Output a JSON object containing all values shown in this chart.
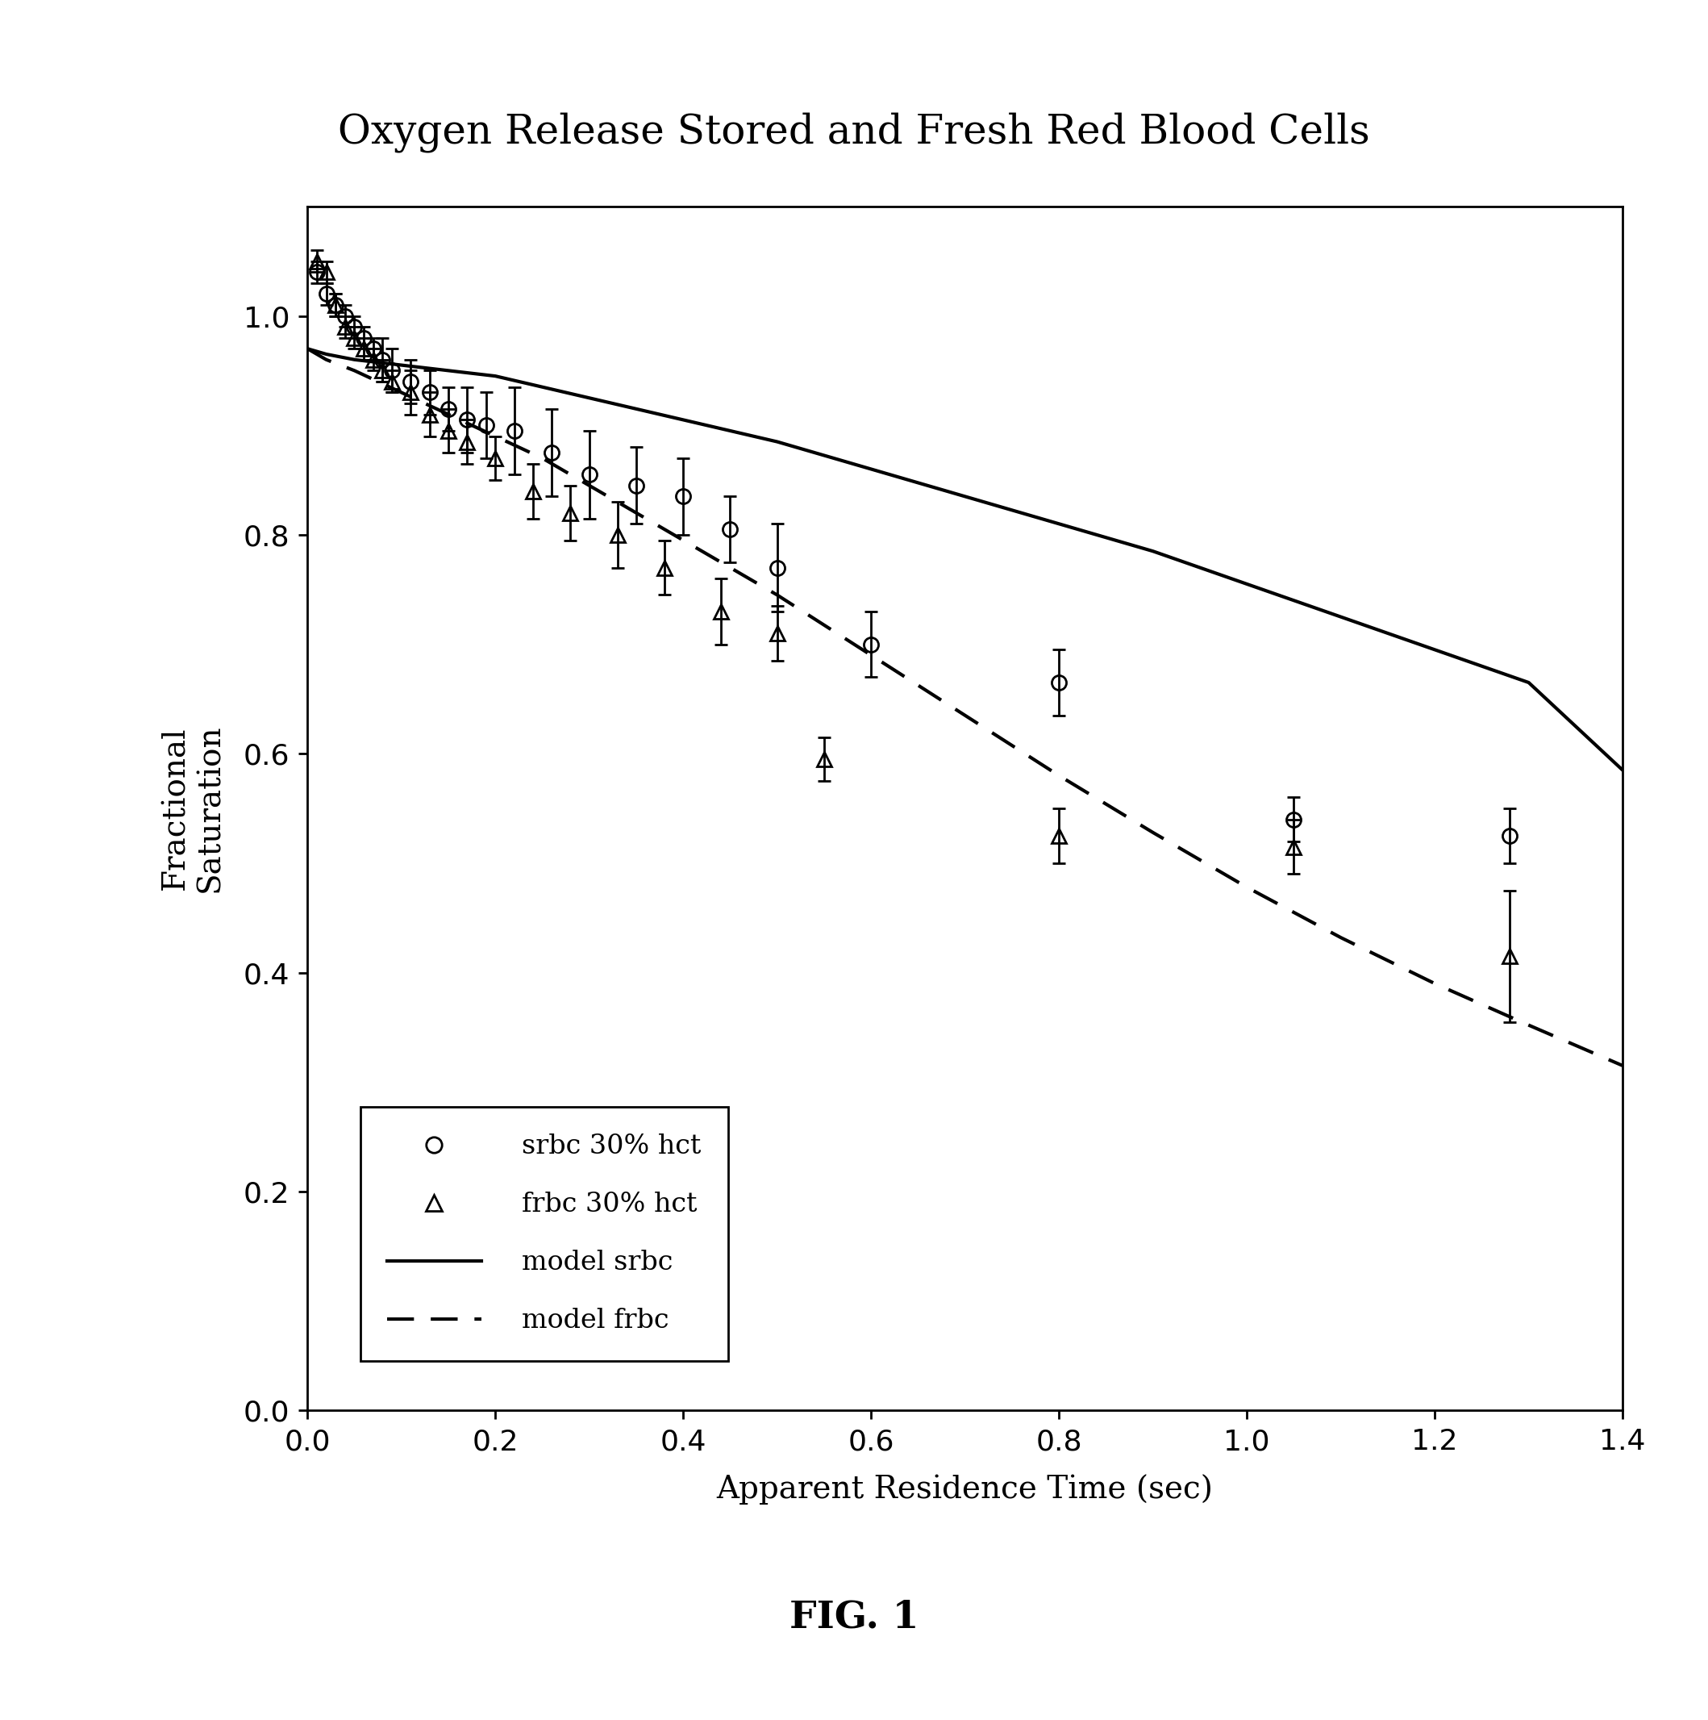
{
  "title": "Oxygen Release Stored and Fresh Red Blood Cells",
  "xlabel": "Apparent Residence Time (sec)",
  "ylabel": "Fractional\nSaturation",
  "fig_label": "FIG. 1",
  "xlim": [
    0.0,
    1.4
  ],
  "ylim": [
    0.0,
    1.1
  ],
  "xticks": [
    0.0,
    0.2,
    0.4,
    0.6,
    0.8,
    1.0,
    1.2,
    1.4
  ],
  "yticks": [
    0.0,
    0.2,
    0.4,
    0.6,
    0.8,
    1.0
  ],
  "srbc_x": [
    0.01,
    0.02,
    0.03,
    0.04,
    0.05,
    0.06,
    0.07,
    0.08,
    0.09,
    0.11,
    0.13,
    0.15,
    0.17,
    0.19,
    0.22,
    0.26,
    0.3,
    0.35,
    0.4,
    0.45,
    0.5,
    0.6,
    0.8,
    1.05,
    1.28
  ],
  "srbc_y": [
    1.04,
    1.02,
    1.01,
    1.0,
    0.99,
    0.98,
    0.97,
    0.96,
    0.95,
    0.94,
    0.93,
    0.915,
    0.905,
    0.9,
    0.895,
    0.875,
    0.855,
    0.845,
    0.835,
    0.805,
    0.77,
    0.7,
    0.665,
    0.54,
    0.525
  ],
  "srbc_yerr": [
    0.01,
    0.01,
    0.01,
    0.01,
    0.01,
    0.01,
    0.01,
    0.02,
    0.02,
    0.02,
    0.02,
    0.02,
    0.03,
    0.03,
    0.04,
    0.04,
    0.04,
    0.035,
    0.035,
    0.03,
    0.04,
    0.03,
    0.03,
    0.02,
    0.025
  ],
  "frbc_x": [
    0.01,
    0.02,
    0.03,
    0.04,
    0.05,
    0.06,
    0.07,
    0.08,
    0.09,
    0.11,
    0.13,
    0.15,
    0.17,
    0.2,
    0.24,
    0.28,
    0.33,
    0.38,
    0.44,
    0.5,
    0.55,
    0.8,
    1.05,
    1.28
  ],
  "frbc_y": [
    1.05,
    1.04,
    1.01,
    0.99,
    0.98,
    0.97,
    0.96,
    0.95,
    0.94,
    0.93,
    0.91,
    0.895,
    0.885,
    0.87,
    0.84,
    0.82,
    0.8,
    0.77,
    0.73,
    0.71,
    0.595,
    0.525,
    0.515,
    0.415
  ],
  "frbc_yerr": [
    0.01,
    0.01,
    0.01,
    0.01,
    0.01,
    0.01,
    0.01,
    0.01,
    0.01,
    0.02,
    0.02,
    0.02,
    0.02,
    0.02,
    0.025,
    0.025,
    0.03,
    0.025,
    0.03,
    0.025,
    0.02,
    0.025,
    0.025,
    0.06
  ],
  "model_srbc_x": [
    0.0,
    0.02,
    0.05,
    0.1,
    0.15,
    0.2,
    0.25,
    0.3,
    0.35,
    0.4,
    0.45,
    0.5,
    0.6,
    0.7,
    0.8,
    0.9,
    1.0,
    1.1,
    1.2,
    1.3,
    1.4
  ],
  "model_srbc_y": [
    0.97,
    0.965,
    0.96,
    0.955,
    0.95,
    0.945,
    0.935,
    0.925,
    0.915,
    0.905,
    0.895,
    0.885,
    0.86,
    0.835,
    0.81,
    0.785,
    0.755,
    0.725,
    0.695,
    0.665,
    0.585
  ],
  "model_frbc_x": [
    0.0,
    0.02,
    0.05,
    0.1,
    0.15,
    0.2,
    0.25,
    0.3,
    0.35,
    0.4,
    0.45,
    0.5,
    0.6,
    0.7,
    0.8,
    0.9,
    1.0,
    1.1,
    1.2,
    1.3,
    1.4
  ],
  "model_frbc_y": [
    0.97,
    0.96,
    0.95,
    0.93,
    0.91,
    0.89,
    0.87,
    0.845,
    0.82,
    0.795,
    0.77,
    0.745,
    0.69,
    0.635,
    0.58,
    0.528,
    0.478,
    0.432,
    0.39,
    0.352,
    0.315
  ],
  "legend_srbc_label": "srbc 30% hct",
  "legend_frbc_label": "frbc 30% hct",
  "legend_model_srbc_label": "model srbc",
  "legend_model_frbc_label": "model frbc",
  "bg_color": "#ffffff",
  "line_color": "#000000",
  "marker_color": "#000000"
}
